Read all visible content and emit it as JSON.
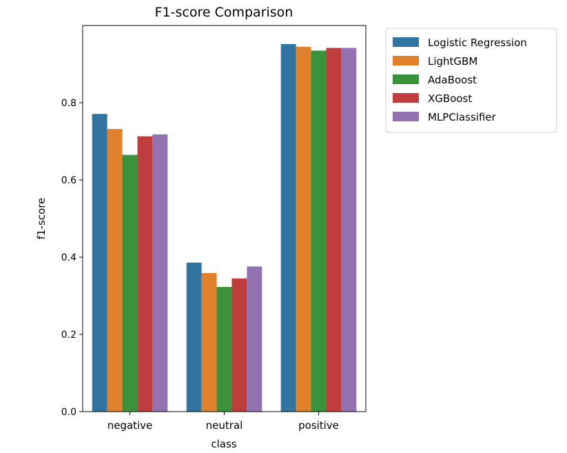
{
  "chart_data": {
    "type": "bar",
    "title": "F1-score Comparison",
    "xlabel": "class",
    "ylabel": "f1-score",
    "categories": [
      "negative",
      "neutral",
      "positive"
    ],
    "ylim": [
      0,
      1.0
    ],
    "yticks": [
      "0.0",
      "0.2",
      "0.4",
      "0.6",
      "0.8"
    ],
    "grid": false,
    "legend_position": "outside-top-right",
    "series": [
      {
        "name": "Logistic Regression",
        "color": "#3274a1",
        "values": [
          0.771,
          0.386,
          0.952
        ]
      },
      {
        "name": "LightGBM",
        "color": "#e1812c",
        "values": [
          0.732,
          0.359,
          0.945
        ]
      },
      {
        "name": "AdaBoost",
        "color": "#3a923a",
        "values": [
          0.665,
          0.323,
          0.935
        ]
      },
      {
        "name": "XGBoost",
        "color": "#c03d3e",
        "values": [
          0.713,
          0.345,
          0.942
        ]
      },
      {
        "name": "MLPClassifier",
        "color": "#9372b2",
        "values": [
          0.718,
          0.376,
          0.942
        ]
      }
    ]
  }
}
